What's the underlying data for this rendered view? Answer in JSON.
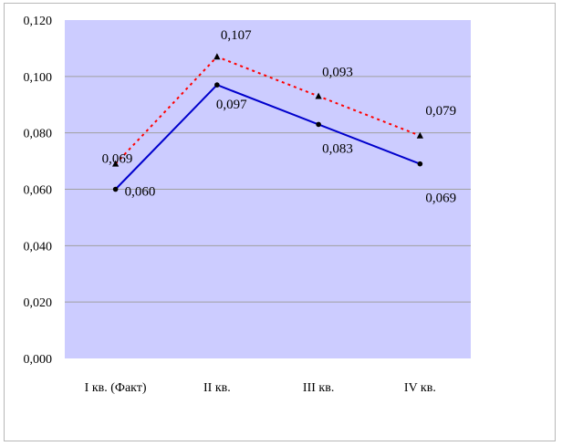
{
  "chart_data": {
    "type": "line",
    "categories": [
      "I кв. (Факт)",
      "II кв.",
      "III кв.",
      "IV кв."
    ],
    "series": [
      {
        "values": [
          0.06,
          0.097,
          0.083,
          0.069
        ],
        "labels": [
          "0,060",
          "0,097",
          "0,083",
          "0,069"
        ],
        "color": "#0000cc",
        "line_style": "solid",
        "marker": "circle"
      },
      {
        "values": [
          0.069,
          0.107,
          0.093,
          0.079
        ],
        "labels": [
          "0,069",
          "0,107",
          "0,093",
          "0,079"
        ],
        "color": "#ff0000",
        "line_style": "dotted",
        "marker": "triangle"
      }
    ],
    "y_ticks": [
      0.0,
      0.02,
      0.04,
      0.06,
      0.08,
      0.1,
      0.12
    ],
    "y_tick_labels": [
      "0,000",
      "0,020",
      "0,040",
      "0,060",
      "0,080",
      "0,100",
      "0,120"
    ],
    "ylim": [
      0,
      0.12
    ],
    "grid": true,
    "legend": "none",
    "plot_background": "#ccccff",
    "title": "",
    "xlabel": "",
    "ylabel": ""
  }
}
